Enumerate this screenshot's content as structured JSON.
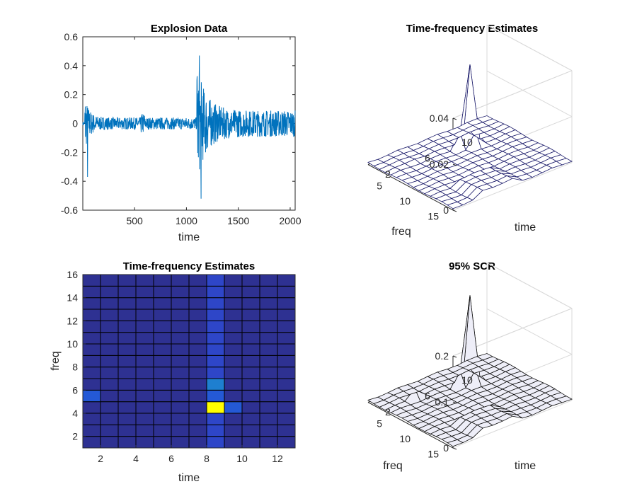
{
  "colors": {
    "signal": "#0072bd",
    "axis": "#262626",
    "grid": "#d9d9d9",
    "cell_low": "#2e3192",
    "cell_mid": "#2459d6",
    "cell_high": "#ffff00",
    "mesh_edge": "#1c1c6b",
    "surface_fill": "#eeeef8"
  },
  "chart_data": [
    {
      "type": "line",
      "title": "Explosion Data",
      "xlabel": "time",
      "ylabel": "",
      "xlim": [
        1,
        2048
      ],
      "ylim": [
        -0.6,
        0.6
      ],
      "xticks": [
        "500",
        "1000",
        "1500",
        "2000"
      ],
      "yticks": [
        "0.6",
        "0.4",
        "0.2",
        "0",
        "-0.2",
        "-0.4",
        "-0.6"
      ],
      "series": [
        {
          "name": "explosion",
          "peak_max": 0.47,
          "peak_min": -0.52,
          "onset_p": 20,
          "onset_s": 1100
        }
      ]
    },
    {
      "type": "surface",
      "title": "Time-frequency Estimates",
      "xlabel": "time",
      "ylabel": "freq",
      "zticks": [
        "0",
        "0.02",
        "0.04"
      ],
      "xticks": [
        "2",
        "6",
        "10"
      ],
      "yticks": [
        "5",
        "10",
        "15"
      ],
      "zlim": [
        0,
        0.04
      ],
      "peak": {
        "time": 9,
        "freq": 5,
        "value": 0.035
      }
    },
    {
      "type": "heatmap",
      "title": "Time-frequency Estimates",
      "xlabel": "time",
      "ylabel": "freq",
      "xticks": [
        "2",
        "4",
        "6",
        "8",
        "10",
        "12"
      ],
      "yticks": [
        "2",
        "4",
        "6",
        "8",
        "10",
        "12",
        "14",
        "16"
      ],
      "n_time": 12,
      "n_freq": 15,
      "highlights": [
        {
          "time": 8,
          "freq": 4,
          "level": "high"
        },
        {
          "time": 8,
          "freq": 5,
          "level": "mid"
        },
        {
          "time": 8,
          "freq": 6,
          "level": "mid"
        },
        {
          "time": 1,
          "freq": 5,
          "level": "mid"
        },
        {
          "time": 9,
          "freq": 4,
          "level": "mid"
        }
      ]
    },
    {
      "type": "surface",
      "title": "95% SCR",
      "xlabel": "time",
      "ylabel": "freq",
      "zticks": [
        "0",
        "0.1",
        "0.2"
      ],
      "xticks": [
        "2",
        "6",
        "10"
      ],
      "yticks": [
        "5",
        "10",
        "15"
      ],
      "zlim": [
        0,
        0.2
      ],
      "peak": {
        "time": 9,
        "freq": 5,
        "value": 0.19
      }
    }
  ]
}
